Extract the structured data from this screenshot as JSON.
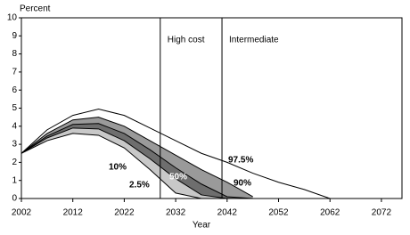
{
  "chart_data": {
    "type": "fan-line",
    "y_label": "Percent",
    "x_label": "Year",
    "x": [
      2002,
      2007,
      2012,
      2017,
      2022,
      2027,
      2032,
      2037,
      2042,
      2047,
      2052,
      2057,
      2062
    ],
    "series": [
      {
        "name": "97.5%",
        "color": "#000000",
        "fill": "none",
        "values": [
          2.5,
          3.8,
          4.6,
          4.95,
          4.6,
          3.9,
          3.2,
          2.5,
          2.0,
          1.4,
          0.9,
          0.5,
          0
        ]
      },
      {
        "name": "90%",
        "color": "#000000",
        "fill": "#9a9a9a",
        "values": [
          2.5,
          3.6,
          4.35,
          4.5,
          4.0,
          3.2,
          2.4,
          1.6,
          0.9,
          0.1,
          null,
          null,
          null
        ]
      },
      {
        "name": "50%",
        "color": "#000000",
        "fill": "#6e6e6e",
        "values": [
          2.5,
          3.45,
          4.1,
          4.15,
          3.6,
          2.7,
          1.7,
          0.8,
          0.1,
          0,
          null,
          null,
          null
        ]
      },
      {
        "name": "10%",
        "color": "#000000",
        "fill": "#c8c8c8",
        "values": [
          2.5,
          3.35,
          3.9,
          3.85,
          3.2,
          2.2,
          1.1,
          0.2,
          0,
          null,
          null,
          null,
          null
        ]
      },
      {
        "name": "2.5%",
        "color": "#000000",
        "fill": "#ffffff",
        "values": [
          2.5,
          3.2,
          3.6,
          3.5,
          2.8,
          1.6,
          0.3,
          0,
          null,
          null,
          null,
          null,
          null
        ]
      }
    ],
    "annotations": [
      {
        "text": "High cost",
        "x": 2029
      },
      {
        "text": "Intermediate",
        "x": 2041
      }
    ],
    "xlim": [
      2002,
      2076
    ],
    "xticks": [
      2002,
      2012,
      2022,
      2032,
      2042,
      2052,
      2062,
      2072
    ],
    "ylim": [
      0,
      10
    ],
    "yticks": [
      0,
      1,
      2,
      3,
      4,
      5,
      6,
      7,
      8,
      9,
      10
    ]
  }
}
